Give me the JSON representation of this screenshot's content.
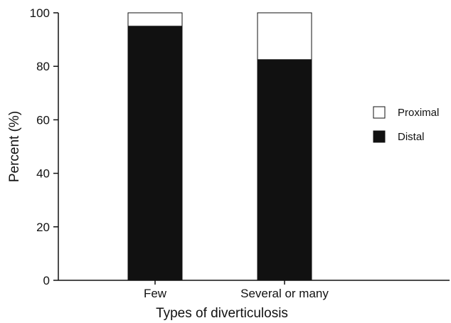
{
  "chart_data": {
    "type": "bar",
    "stacked": true,
    "title": "",
    "xlabel": "Types of diverticulosis",
    "ylabel": "Percent (%)",
    "categories": [
      "Few",
      "Several or many"
    ],
    "series": [
      {
        "name": "Distal",
        "values": [
          95,
          82.5
        ],
        "color": "#111111"
      },
      {
        "name": "Proximal",
        "values": [
          5,
          17.5
        ],
        "color": "#ffffff"
      }
    ],
    "ylim": [
      0,
      100
    ],
    "yticks": [
      "0",
      "20",
      "40",
      "60",
      "80",
      "100"
    ],
    "grid": false,
    "legend": {
      "position": "right",
      "entries": [
        {
          "label": "Proximal",
          "color": "#ffffff"
        },
        {
          "label": "Distal",
          "color": "#111111"
        }
      ]
    }
  }
}
